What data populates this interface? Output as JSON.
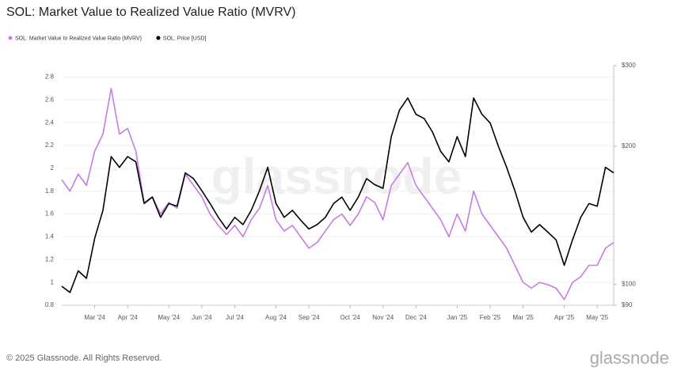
{
  "chart_data": {
    "type": "line",
    "title": "SOL: Market Value to Realized Value Ratio (MVRV)",
    "watermark": "glassnode",
    "footer": "© 2025 Glassnode. All Rights Reserved.",
    "logo": "glassnode",
    "categories": [
      null,
      null,
      null,
      null,
      "Mar '24",
      null,
      null,
      null,
      "Apr '24",
      null,
      null,
      null,
      null,
      "May '24",
      null,
      null,
      null,
      "Jun '24",
      null,
      null,
      null,
      "Jul '24",
      null,
      null,
      null,
      null,
      "Aug '24",
      null,
      null,
      null,
      "Sep '24",
      null,
      null,
      null,
      null,
      "Oct '24",
      null,
      null,
      null,
      "Nov '24",
      null,
      null,
      null,
      "Dec '24",
      null,
      null,
      null,
      null,
      "Jan '25",
      null,
      null,
      null,
      "Feb '25",
      null,
      null,
      null,
      "Mar '25",
      null,
      null,
      null,
      null,
      "Apr '25",
      null,
      null,
      null,
      "May '25",
      null,
      null
    ],
    "series": [
      {
        "name": "SOL: Market Value to Realized Value Ratio (MVRV)",
        "color": "#c57be8",
        "values": [
          1.9,
          1.8,
          1.95,
          1.85,
          2.15,
          2.3,
          2.7,
          2.3,
          2.35,
          2.15,
          1.7,
          1.75,
          1.6,
          1.7,
          1.65,
          1.95,
          1.85,
          1.75,
          1.6,
          1.5,
          1.42,
          1.5,
          1.4,
          1.55,
          1.65,
          1.85,
          1.55,
          1.45,
          1.5,
          1.4,
          1.3,
          1.35,
          1.45,
          1.55,
          1.6,
          1.5,
          1.6,
          1.75,
          1.7,
          1.55,
          1.85,
          1.95,
          2.05,
          1.85,
          1.75,
          1.65,
          1.55,
          1.4,
          1.6,
          1.45,
          1.8,
          1.6,
          1.5,
          1.4,
          1.3,
          1.15,
          1.0,
          0.95,
          1.0,
          0.98,
          0.95,
          0.85,
          1.0,
          1.05,
          1.15,
          1.15,
          1.3,
          1.35
        ]
      },
      {
        "name": "SOL: Price [USD]",
        "color": "#000000",
        "axis": "y2",
        "values": [
          99,
          96,
          107,
          103,
          126,
          145,
          190,
          180,
          190,
          185,
          150,
          155,
          140,
          150,
          148,
          175,
          170,
          160,
          150,
          140,
          132,
          140,
          135,
          145,
          160,
          180,
          150,
          140,
          145,
          138,
          132,
          135,
          140,
          150,
          155,
          145,
          155,
          170,
          165,
          162,
          210,
          240,
          255,
          235,
          230,
          215,
          195,
          185,
          210,
          190,
          255,
          235,
          225,
          200,
          180,
          160,
          140,
          130,
          135,
          130,
          125,
          110,
          125,
          140,
          150,
          148,
          180,
          175
        ]
      }
    ],
    "ylim": [
      0.8,
      2.9
    ],
    "yticks": [
      0.8,
      1,
      1.2,
      1.4,
      1.6,
      1.8,
      2,
      2.2,
      2.4,
      2.6,
      2.8
    ],
    "y2lim": [
      90,
      300
    ],
    "y2log": true,
    "y2ticks": [
      {
        "value": 90,
        "label": "$90"
      },
      {
        "value": 100,
        "label": "$100"
      },
      {
        "value": 200,
        "label": "$200"
      },
      {
        "value": 300,
        "label": "$300"
      }
    ],
    "grid": true,
    "legend": "top-left"
  }
}
